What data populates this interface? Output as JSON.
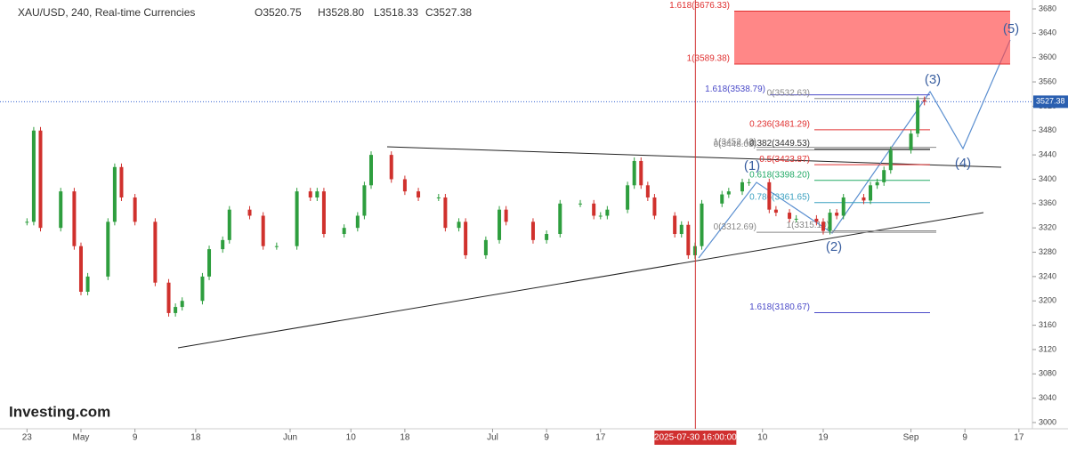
{
  "header": {
    "symbol": "XAU/USD, 240, Real-time Currencies",
    "open": "O3520.75",
    "high": "H3528.80",
    "low": "L3518.33",
    "close": "C3527.38"
  },
  "logo": "Investing.com",
  "chart_data": {
    "type": "candlestick",
    "x": [
      "2025-04-23",
      "2025-04-24",
      "2025-04-25",
      "2025-04-28",
      "2025-04-30",
      "2025-05-01",
      "2025-05-02",
      "2025-05-05",
      "2025-05-06",
      "2025-05-07",
      "2025-05-09",
      "2025-05-12",
      "2025-05-14",
      "2025-05-15",
      "2025-05-16",
      "2025-05-19",
      "2025-05-20",
      "2025-05-22",
      "2025-05-23",
      "2025-05-26",
      "2025-05-28",
      "2025-05-30",
      "2025-06-02",
      "2025-06-04",
      "2025-06-05",
      "2025-06-06",
      "2025-06-09",
      "2025-06-11",
      "2025-06-12",
      "2025-06-13",
      "2025-06-16",
      "2025-06-18",
      "2025-06-20",
      "2025-06-23",
      "2025-06-24",
      "2025-06-26",
      "2025-06-27",
      "2025-06-30",
      "2025-07-02",
      "2025-07-03",
      "2025-07-07",
      "2025-07-09",
      "2025-07-11",
      "2025-07-14",
      "2025-07-16",
      "2025-07-17",
      "2025-07-18",
      "2025-07-21",
      "2025-07-22",
      "2025-07-23",
      "2025-07-24",
      "2025-07-25",
      "2025-07-28",
      "2025-07-29",
      "2025-07-30",
      "2025-07-31",
      "2025-08-01",
      "2025-08-04",
      "2025-08-05",
      "2025-08-07",
      "2025-08-08",
      "2025-08-11",
      "2025-08-12",
      "2025-08-14",
      "2025-08-15",
      "2025-08-18",
      "2025-08-19",
      "2025-08-20",
      "2025-08-21",
      "2025-08-22",
      "2025-08-25",
      "2025-08-26",
      "2025-08-27",
      "2025-08-28",
      "2025-08-29",
      "2025-09-01",
      "2025-09-02",
      "2025-09-03"
    ],
    "values": [
      3330,
      3480,
      3320,
      3380,
      3290,
      3215,
      3240,
      3330,
      3420,
      3370,
      3330,
      3230,
      3180,
      3190,
      3200,
      3240,
      3285,
      3300,
      3350,
      3340,
      3290,
      3290,
      3380,
      3370,
      3380,
      3310,
      3320,
      3340,
      3390,
      3440,
      3400,
      3380,
      3370,
      3370,
      3320,
      3330,
      3275,
      3300,
      3350,
      3330,
      3300,
      3310,
      3360,
      3360,
      3340,
      3340,
      3350,
      3390,
      3430,
      3390,
      3370,
      3340,
      3310,
      3325,
      3275,
      3290,
      3360,
      3375,
      3380,
      3395,
      3395,
      3350,
      3345,
      3335,
      3335,
      3330,
      3315,
      3345,
      3340,
      3370,
      3365,
      3390,
      3395,
      3415,
      3448,
      3475,
      3530,
      3527.38
    ],
    "up_color": "#2e9e3e",
    "down_color": "#d0312d",
    "xlim": [
      "2025-04-19",
      "2025-09-19"
    ],
    "xticks": [
      {
        "value": "2025-04-23",
        "label": "23"
      },
      {
        "value": "2025-05-01",
        "label": "May"
      },
      {
        "value": "2025-05-09",
        "label": "9"
      },
      {
        "value": "2025-05-18",
        "label": "18"
      },
      {
        "value": "2025-06-01",
        "label": "Jun"
      },
      {
        "value": "2025-06-10",
        "label": "10"
      },
      {
        "value": "2025-06-18",
        "label": "18"
      },
      {
        "value": "2025-07-01",
        "label": "Jul"
      },
      {
        "value": "2025-07-09",
        "label": "9"
      },
      {
        "value": "2025-07-17",
        "label": "17"
      },
      {
        "value": "2025-08-10",
        "label": "10"
      },
      {
        "value": "2025-08-19",
        "label": "19"
      },
      {
        "value": "2025-09-01",
        "label": "Sep"
      },
      {
        "value": "2025-09-09",
        "label": "9"
      },
      {
        "value": "2025-09-17",
        "label": "17"
      }
    ],
    "ylim": [
      3000,
      3680
    ],
    "yticks": [
      3000,
      3040,
      3080,
      3120,
      3160,
      3200,
      3240,
      3280,
      3320,
      3360,
      3400,
      3440,
      3480,
      3520,
      3560,
      3600,
      3640,
      3680
    ],
    "last_price": 3527.38,
    "crosshair": {
      "x": "2025-07-30",
      "label": "2025-07-30 16:00:00"
    },
    "fib_levels": [
      {
        "label": "1.618(3676.33)",
        "value": 3676.33,
        "color": "#e03030"
      },
      {
        "label": "1(3589.38)",
        "value": 3589.38,
        "color": "#e03030"
      },
      {
        "label": "1.618(3538.79)",
        "value": 3538.79,
        "color": "#4a4ac8"
      },
      {
        "label": "0(3532.63)",
        "value": 3532.63,
        "color": "#888888"
      },
      {
        "label": "0.236(3481.29)",
        "value": 3481.29,
        "color": "#e03030"
      },
      {
        "label": "1(3452.43)",
        "value": 3452.43,
        "color": "#888888"
      },
      {
        "label": "0.382(3449.53)",
        "value": 3449.53,
        "color": "#333333"
      },
      {
        "label": "0(3448.08)",
        "value": 3448.08,
        "color": "#888888"
      },
      {
        "label": "0.5(3423.87)",
        "value": 3423.87,
        "color": "#e03030"
      },
      {
        "label": "0.618(3398.20)",
        "value": 3398.2,
        "color": "#22aa66"
      },
      {
        "label": "0.786(3361.65)",
        "value": 3361.65,
        "color": "#3aa0c0"
      },
      {
        "label": "1(3315.10)",
        "value": 3315.1,
        "color": "#888888"
      },
      {
        "label": "0(3312.69)",
        "value": 3312.69,
        "color": "#888888"
      },
      {
        "label": "1.618(3180.67)",
        "value": 3180.67,
        "color": "#4a4ac8"
      }
    ],
    "waves": [
      "(1)",
      "(2)",
      "(3)",
      "(4)",
      "(5)"
    ]
  }
}
